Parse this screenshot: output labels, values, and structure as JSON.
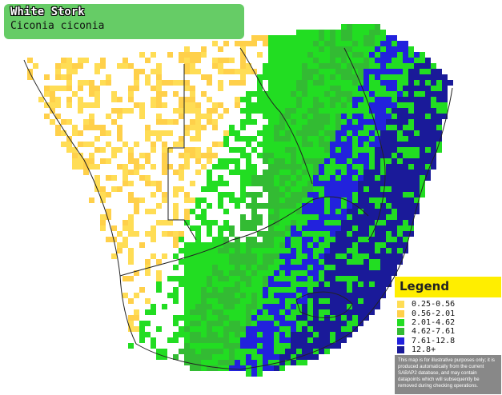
{
  "title": {
    "common_name": "White Stork",
    "scientific_name": "Ciconia ciconia"
  },
  "legend": {
    "heading": "Legend",
    "items": [
      {
        "label": "0.25-0.56",
        "color": "#ffdd55"
      },
      {
        "label": "0.56-2.01",
        "color": "#ffd04a"
      },
      {
        "label": "2.01-4.62",
        "color": "#22dd22"
      },
      {
        "label": "4.62-7.61",
        "color": "#33bb33"
      },
      {
        "label": "7.61-12.8",
        "color": "#2222dd"
      },
      {
        "label": "12.8+",
        "color": "#1a1a99"
      }
    ],
    "disclaimer": "This map is for illustrative purposes only; it is produced automatically from the current SABAP2 database, and may contain datapoints which will subsequently be removed during checking operations."
  },
  "colors": {
    "background": "#ffffff",
    "border_lines": "#222222",
    "title_box": "#66cc66",
    "legend_header": "#ffee00"
  }
}
